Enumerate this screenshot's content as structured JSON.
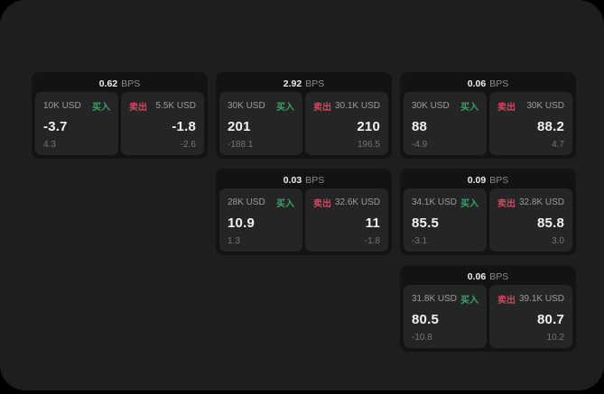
{
  "theme": {
    "outer_bg": "#000000",
    "surface_bg": "#1d1e1f",
    "card_bg": "#121314",
    "tile_bg": "#242527",
    "buy_color": "#3da364",
    "sell_color": "#ce4a5f",
    "price_color": "#f2f2f2",
    "label_color": "#9c9c9c",
    "muted_color": "#757575"
  },
  "labels": {
    "bps_unit": "BPS",
    "buy": "买入",
    "sell": "卖出"
  },
  "cards": [
    {
      "row": 1,
      "col": 1,
      "spread_bps": "0.62",
      "buy": {
        "size": "10K USD",
        "price": "-3.7",
        "change": "4.3"
      },
      "sell": {
        "size": "5.5K USD",
        "price": "-1.8",
        "change": "-2.6"
      }
    },
    {
      "row": 1,
      "col": 2,
      "spread_bps": "2.92",
      "buy": {
        "size": "30K USD",
        "price": "201",
        "change": "-188.1"
      },
      "sell": {
        "size": "30.1K USD",
        "price": "210",
        "change": "196.5"
      }
    },
    {
      "row": 1,
      "col": 3,
      "spread_bps": "0.06",
      "buy": {
        "size": "30K USD",
        "price": "88",
        "change": "-4.9"
      },
      "sell": {
        "size": "30K USD",
        "price": "88.2",
        "change": "4.7"
      }
    },
    {
      "row": 2,
      "col": 2,
      "spread_bps": "0.03",
      "buy": {
        "size": "28K USD",
        "price": "10.9",
        "change": "1.3"
      },
      "sell": {
        "size": "32.6K USD",
        "price": "11",
        "change": "-1.8"
      }
    },
    {
      "row": 2,
      "col": 3,
      "spread_bps": "0.09",
      "buy": {
        "size": "34.1K USD",
        "price": "85.5",
        "change": "-3.1"
      },
      "sell": {
        "size": "32.8K USD",
        "price": "85.8",
        "change": "3.0"
      }
    },
    {
      "row": 3,
      "col": 3,
      "spread_bps": "0.06",
      "buy": {
        "size": "31.8K USD",
        "price": "80.5",
        "change": "-10.8"
      },
      "sell": {
        "size": "39.1K USD",
        "price": "80.7",
        "change": "10.2"
      }
    }
  ]
}
